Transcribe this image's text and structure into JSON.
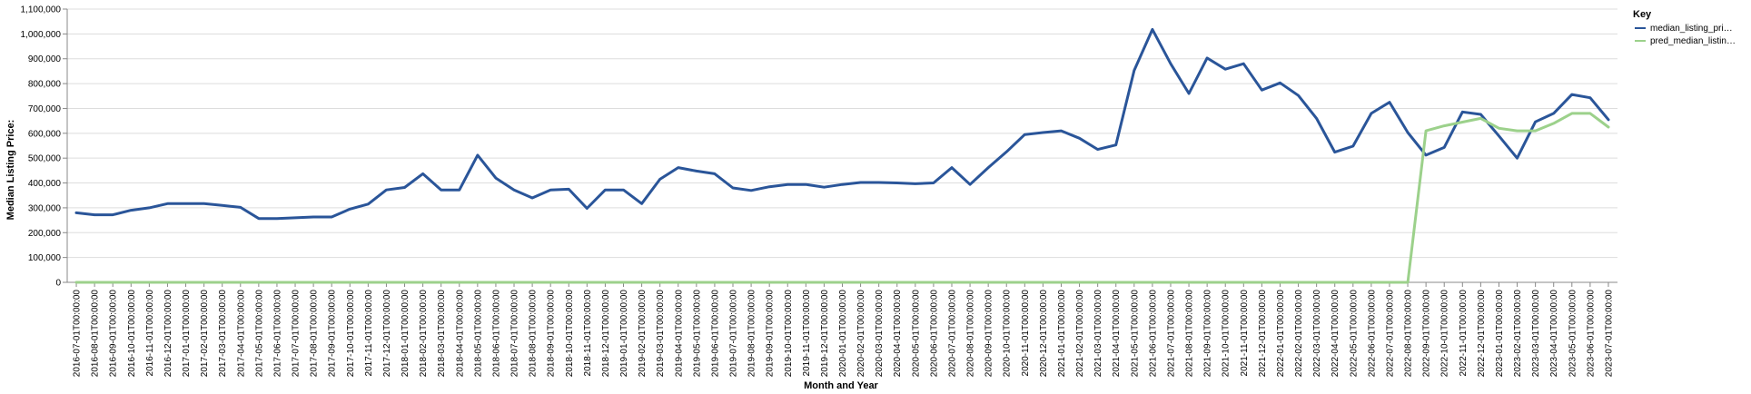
{
  "chart_data": {
    "type": "line",
    "title": "",
    "xlabel": "Month and Year",
    "ylabel": "Median Listing Price:",
    "ylim": [
      0,
      1100000
    ],
    "y_ticks": [
      "0",
      "100,000",
      "200,000",
      "300,000",
      "400,000",
      "500,000",
      "600,000",
      "700,000",
      "800,000",
      "900,000",
      "1,000,000",
      "1,100,000"
    ],
    "y_tick_values": [
      0,
      100000,
      200000,
      300000,
      400000,
      500000,
      600000,
      700000,
      800000,
      900000,
      1000000,
      1100000
    ],
    "legend": {
      "title": "Key",
      "placement": "right",
      "entries": [
        "median_listing_pri…",
        "pred_median_listin…"
      ]
    },
    "categories": [
      "2016-07-01T00:00:00",
      "2016-08-01T00:00:00",
      "2016-09-01T00:00:00",
      "2016-10-01T00:00:00",
      "2016-11-01T00:00:00",
      "2016-12-01T00:00:00",
      "2017-01-01T00:00:00",
      "2017-02-01T00:00:00",
      "2017-03-01T00:00:00",
      "2017-04-01T00:00:00",
      "2017-05-01T00:00:00",
      "2017-06-01T00:00:00",
      "2017-07-01T00:00:00",
      "2017-08-01T00:00:00",
      "2017-09-01T00:00:00",
      "2017-10-01T00:00:00",
      "2017-11-01T00:00:00",
      "2017-12-01T00:00:00",
      "2018-01-01T00:00:00",
      "2018-02-01T00:00:00",
      "2018-03-01T00:00:00",
      "2018-04-01T00:00:00",
      "2018-05-01T00:00:00",
      "2018-06-01T00:00:00",
      "2018-07-01T00:00:00",
      "2018-08-01T00:00:00",
      "2018-09-01T00:00:00",
      "2018-10-01T00:00:00",
      "2018-11-01T00:00:00",
      "2018-12-01T00:00:00",
      "2019-01-01T00:00:00",
      "2019-02-01T00:00:00",
      "2019-03-01T00:00:00",
      "2019-04-01T00:00:00",
      "2019-05-01T00:00:00",
      "2019-06-01T00:00:00",
      "2019-07-01T00:00:00",
      "2019-08-01T00:00:00",
      "2019-09-01T00:00:00",
      "2019-10-01T00:00:00",
      "2019-11-01T00:00:00",
      "2019-12-01T00:00:00",
      "2020-01-01T00:00:00",
      "2020-02-01T00:00:00",
      "2020-03-01T00:00:00",
      "2020-04-01T00:00:00",
      "2020-05-01T00:00:00",
      "2020-06-01T00:00:00",
      "2020-07-01T00:00:00",
      "2020-08-01T00:00:00",
      "2020-09-01T00:00:00",
      "2020-10-01T00:00:00",
      "2020-11-01T00:00:00",
      "2020-12-01T00:00:00",
      "2021-01-01T00:00:00",
      "2021-02-01T00:00:00",
      "2021-03-01T00:00:00",
      "2021-04-01T00:00:00",
      "2021-05-01T00:00:00",
      "2021-06-01T00:00:00",
      "2021-07-01T00:00:00",
      "2021-08-01T00:00:00",
      "2021-09-01T00:00:00",
      "2021-10-01T00:00:00",
      "2021-11-01T00:00:00",
      "2021-12-01T00:00:00",
      "2022-01-01T00:00:00",
      "2022-02-01T00:00:00",
      "2022-03-01T00:00:00",
      "2022-04-01T00:00:00",
      "2022-05-01T00:00:00",
      "2022-06-01T00:00:00",
      "2022-07-01T00:00:00",
      "2022-08-01T00:00:00",
      "2022-09-01T00:00:00",
      "2022-10-01T00:00:00",
      "2022-11-01T00:00:00",
      "2022-12-01T00:00:00",
      "2023-01-01T00:00:00",
      "2023-02-01T00:00:00",
      "2023-03-01T00:00:00",
      "2023-04-01T00:00:00",
      "2023-05-01T00:00:00",
      "2023-06-01T00:00:00",
      "2023-07-01T00:00:00"
    ],
    "series": [
      {
        "name": "median_listing_price",
        "color": "#2a5599",
        "values": [
          280000,
          272000,
          272000,
          290000,
          300000,
          317000,
          317000,
          317000,
          310000,
          302000,
          257000,
          257000,
          260000,
          263000,
          263000,
          295000,
          315000,
          372000,
          382000,
          437000,
          372000,
          372000,
          512000,
          420000,
          372000,
          340000,
          372000,
          375000,
          298000,
          372000,
          372000,
          317000,
          415000,
          462000,
          448000,
          437000,
          380000,
          370000,
          385000,
          394000,
          394000,
          383000,
          394000,
          402000,
          402000,
          400000,
          397000,
          400000,
          462000,
          394000,
          462000,
          525000,
          595000,
          603000,
          610000,
          580000,
          535000,
          553000,
          853000,
          1018000,
          880000,
          760000,
          903000,
          858000,
          880000,
          774000,
          803000,
          752000,
          660000,
          524000,
          548000,
          680000,
          725000,
          603000,
          512000,
          543000,
          686000,
          676000,
          589000,
          500000,
          646000,
          680000,
          756000,
          743000,
          655000
        ]
      },
      {
        "name": "pred_median_listing_price",
        "color": "#9cd18b",
        "values": [
          0,
          0,
          0,
          0,
          0,
          0,
          0,
          0,
          0,
          0,
          0,
          0,
          0,
          0,
          0,
          0,
          0,
          0,
          0,
          0,
          0,
          0,
          0,
          0,
          0,
          0,
          0,
          0,
          0,
          0,
          0,
          0,
          0,
          0,
          0,
          0,
          0,
          0,
          0,
          0,
          0,
          0,
          0,
          0,
          0,
          0,
          0,
          0,
          0,
          0,
          0,
          0,
          0,
          0,
          0,
          0,
          0,
          0,
          0,
          0,
          0,
          0,
          0,
          0,
          0,
          0,
          0,
          0,
          0,
          0,
          0,
          0,
          0,
          0,
          610000,
          630000,
          645000,
          660000,
          620000,
          610000,
          610000,
          640000,
          680000,
          680000,
          625000
        ]
      }
    ]
  }
}
